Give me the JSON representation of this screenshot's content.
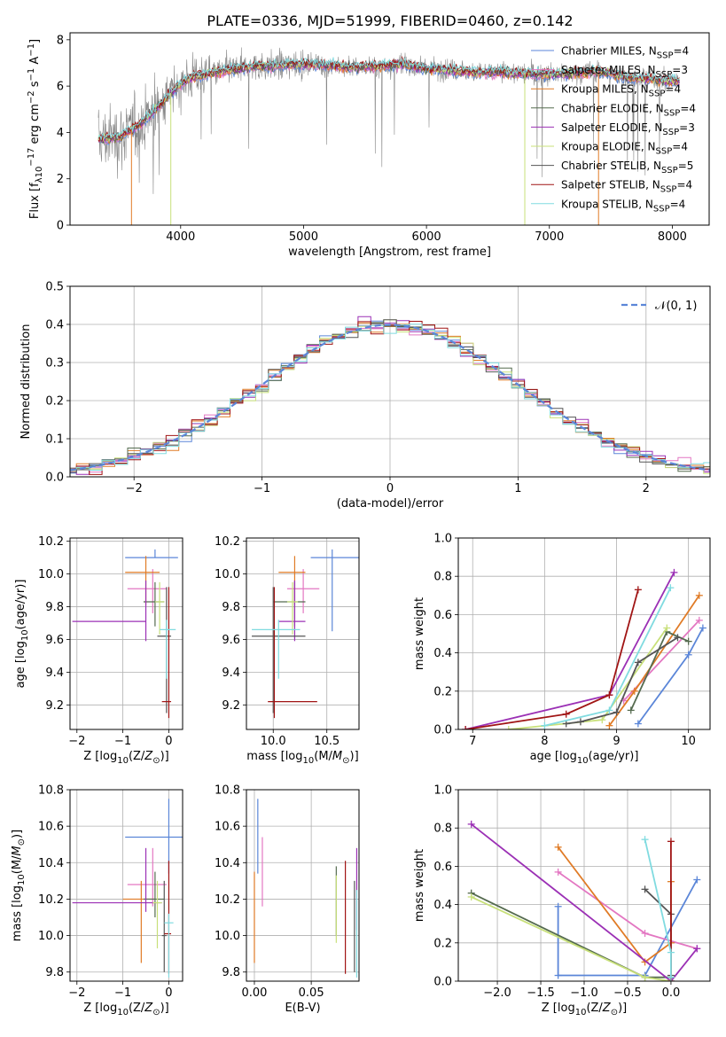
{
  "figure": {
    "title": "PLATE=0336, MJD=51999, FIBERID=0460, z=0.142"
  },
  "palette": {
    "chabrier_miles": "#5b86d8",
    "salpeter_miles": "#e377c2",
    "kroupa_miles": "#e07b26",
    "chabrier_elodie": "#556b4f",
    "salpeter_elodie": "#9b30b5",
    "kroupa_elodie": "#c8e07a",
    "chabrier_stelib": "#555555",
    "salpeter_stelib": "#a01414",
    "kroupa_stelib": "#80dbe0",
    "data": "#888888",
    "normal": "#5b86d8"
  },
  "chart_data": [
    {
      "id": "spectrum",
      "type": "line",
      "xlabel": "wavelength [Angstrom, rest frame]",
      "ylabel": "Flux [f_λ10^-17 erg cm^-2 s^-1 A^-1]",
      "xlim": [
        3100,
        8300
      ],
      "ylim": [
        0,
        8.3
      ],
      "xticks": [
        4000,
        5000,
        6000,
        7000,
        8000
      ],
      "yticks": [
        0,
        2,
        4,
        6,
        8
      ],
      "legend_position": "top-right",
      "legend": [
        {
          "label": "Chabrier MILES, N_SSP=4",
          "color_key": "chabrier_miles"
        },
        {
          "label": "Salpeter MILES, N_SSP=3",
          "color_key": "salpeter_miles"
        },
        {
          "label": "Kroupa MILES, N_SSP=4",
          "color_key": "kroupa_miles"
        },
        {
          "label": "Chabrier ELODIE, N_SSP=4",
          "color_key": "chabrier_elodie"
        },
        {
          "label": "Salpeter ELODIE, N_SSP=3",
          "color_key": "salpeter_elodie"
        },
        {
          "label": "Kroupa ELODIE, N_SSP=4",
          "color_key": "kroupa_elodie"
        },
        {
          "label": "Chabrier STELIB, N_SSP=5",
          "color_key": "chabrier_stelib"
        },
        {
          "label": "Salpeter STELIB, N_SSP=4",
          "color_key": "salpeter_stelib"
        },
        {
          "label": "Kroupa STELIB, N_SSP=4",
          "color_key": "kroupa_stelib"
        }
      ],
      "data_range": [
        3330,
        8060
      ],
      "model_continuum": {
        "x": [
          3330,
          3500,
          3600,
          3700,
          3800,
          3900,
          4000,
          4100,
          4200,
          4400,
          4600,
          4800,
          5000,
          5200,
          5400,
          5600,
          5800,
          6000,
          6200,
          6400,
          6600,
          6800,
          7000,
          7200,
          7400,
          7600,
          7800,
          8050
        ],
        "y": [
          3.7,
          3.8,
          4.1,
          4.5,
          5.0,
          5.6,
          6.1,
          6.4,
          6.5,
          6.7,
          6.85,
          6.9,
          6.95,
          6.9,
          6.8,
          6.85,
          6.95,
          6.75,
          6.7,
          6.6,
          6.6,
          6.55,
          6.5,
          6.55,
          6.65,
          6.4,
          6.3,
          6.2
        ]
      }
    },
    {
      "id": "residuals",
      "type": "histogram",
      "xlabel": "(data-model)/error",
      "ylabel": "Normed distribution",
      "xlim": [
        -2.5,
        2.5
      ],
      "ylim": [
        0,
        0.5
      ],
      "xticks": [
        -2,
        -1,
        0,
        1,
        2
      ],
      "yticks": [
        0.0,
        0.1,
        0.2,
        0.3,
        0.4,
        0.5
      ],
      "grid": true,
      "legend_position": "top-right",
      "legend": [
        {
          "label": "𝒩(0, 1)",
          "color_key": "normal"
        }
      ],
      "bin_width": 0.1
    },
    {
      "id": "age_vs_z",
      "type": "errorbar",
      "xlabel": "Z [log10(Z/Z⊙)]",
      "ylabel": "age [log10(age/yr)]",
      "xlim": [
        -2.15,
        0.3
      ],
      "ylim": [
        9.05,
        10.22
      ],
      "xticks": [
        -2,
        -1,
        0
      ],
      "yticks": [
        9.2,
        9.4,
        9.6,
        9.8,
        10.0,
        10.2
      ],
      "grid": true,
      "points": [
        {
          "model": "chabrier_miles",
          "x": -0.3,
          "xerr": [
            0.65,
            0.5
          ],
          "y": 10.1,
          "yerr": [
            0.0,
            0.05
          ]
        },
        {
          "model": "salpeter_miles",
          "x": -0.35,
          "xerr": [
            0.55,
            0.3
          ],
          "y": 9.91,
          "yerr": [
            0.15,
            0.12
          ]
        },
        {
          "model": "kroupa_miles",
          "x": -0.5,
          "xerr": [
            0.45,
            0.3
          ],
          "y": 10.01,
          "yerr": [
            0.2,
            0.1
          ]
        },
        {
          "model": "chabrier_elodie",
          "x": -0.3,
          "xerr": [
            0.25,
            0.2
          ],
          "y": 9.83,
          "yerr": [
            0.15,
            0.12
          ]
        },
        {
          "model": "salpeter_elodie",
          "x": -0.5,
          "xerr": [
            1.6,
            0.0
          ],
          "y": 9.71,
          "yerr": [
            0.12,
            0.25
          ]
        },
        {
          "model": "kroupa_elodie",
          "x": -0.2,
          "xerr": [
            0.1,
            0.1
          ],
          "y": 9.83,
          "yerr": [
            0.2,
            0.12
          ]
        },
        {
          "model": "chabrier_stelib",
          "x": -0.05,
          "xerr": [
            0.2,
            0.1
          ],
          "y": 9.62,
          "yerr": [
            0.47,
            0.3
          ]
        },
        {
          "model": "salpeter_stelib",
          "x": 0.0,
          "xerr": [
            0.15,
            0.05
          ],
          "y": 9.22,
          "yerr": [
            0.1,
            0.7
          ]
        },
        {
          "model": "kroupa_stelib",
          "x": -0.05,
          "xerr": [
            0.15,
            0.2
          ],
          "y": 9.66,
          "yerr": [
            0.3,
            0.06
          ]
        }
      ]
    },
    {
      "id": "age_vs_mass",
      "type": "errorbar",
      "xlabel": "mass [log10(M/M⊙)]",
      "ylabel": "",
      "xlim": [
        9.75,
        10.8
      ],
      "ylim": [
        9.05,
        10.22
      ],
      "xticks": [
        10.0,
        10.5
      ],
      "yticks": [
        9.2,
        9.4,
        9.6,
        9.8,
        10.0,
        10.2
      ],
      "grid": true,
      "points": [
        {
          "model": "chabrier_miles",
          "x": 10.55,
          "xerr": [
            0.2,
            0.25
          ],
          "y": 10.1,
          "yerr": [
            0.45,
            0.05
          ]
        },
        {
          "model": "salpeter_miles",
          "x": 10.28,
          "xerr": [
            0.15,
            0.15
          ],
          "y": 9.91,
          "yerr": [
            0.15,
            0.12
          ]
        },
        {
          "model": "kroupa_miles",
          "x": 10.2,
          "xerr": [
            0.15,
            0.1
          ],
          "y": 10.01,
          "yerr": [
            0.2,
            0.1
          ]
        },
        {
          "model": "chabrier_elodie",
          "x": 10.2,
          "xerr": [
            0.2,
            0.1
          ],
          "y": 9.83,
          "yerr": [
            0.15,
            0.12
          ]
        },
        {
          "model": "salpeter_elodie",
          "x": 10.2,
          "xerr": [
            0.15,
            0.1
          ],
          "y": 9.71,
          "yerr": [
            0.12,
            0.25
          ]
        },
        {
          "model": "kroupa_elodie",
          "x": 10.18,
          "xerr": [
            0.05,
            0.05
          ],
          "y": 9.83,
          "yerr": [
            0.2,
            0.12
          ]
        },
        {
          "model": "chabrier_stelib",
          "x": 10.0,
          "xerr": [
            0.2,
            0.3
          ],
          "y": 9.62,
          "yerr": [
            0.47,
            0.3
          ]
        },
        {
          "model": "salpeter_stelib",
          "x": 10.01,
          "xerr": [
            0.06,
            0.4
          ],
          "y": 9.22,
          "yerr": [
            0.1,
            0.7
          ]
        },
        {
          "model": "kroupa_stelib",
          "x": 10.05,
          "xerr": [
            0.25,
            0.2
          ],
          "y": 9.66,
          "yerr": [
            0.3,
            0.06
          ]
        }
      ]
    },
    {
      "id": "weight_vs_age",
      "type": "line",
      "xlabel": "age [log10(age/yr)]",
      "ylabel": "mass weight",
      "xlim": [
        6.8,
        10.3
      ],
      "ylim": [
        0,
        1.0
      ],
      "xticks": [
        7,
        8,
        9,
        10
      ],
      "yticks": [
        0.0,
        0.2,
        0.4,
        0.6,
        0.8,
        1.0
      ],
      "grid": true,
      "series": [
        {
          "model": "chabrier_miles",
          "x": [
            9.3,
            10.0,
            10.2
          ],
          "y": [
            0.03,
            0.39,
            0.53
          ]
        },
        {
          "model": "salpeter_miles",
          "x": [
            9.1,
            10.15
          ],
          "y": [
            0.15,
            0.57
          ]
        },
        {
          "model": "kroupa_miles",
          "x": [
            8.9,
            9.25,
            10.15
          ],
          "y": [
            0.02,
            0.2,
            0.7
          ]
        },
        {
          "model": "chabrier_elodie",
          "x": [
            9.2,
            9.7,
            10.0
          ],
          "y": [
            0.1,
            0.51,
            0.46
          ]
        },
        {
          "model": "salpeter_elodie",
          "x": [
            6.9,
            8.9,
            9.8
          ],
          "y": [
            0.0,
            0.18,
            0.82
          ]
        },
        {
          "model": "kroupa_elodie",
          "x": [
            7.5,
            8.8,
            9.7
          ],
          "y": [
            0.0,
            0.05,
            0.53
          ]
        },
        {
          "model": "chabrier_stelib",
          "x": [
            8.3,
            8.5,
            9.0,
            9.3,
            9.85
          ],
          "y": [
            0.03,
            0.04,
            0.09,
            0.35,
            0.48
          ]
        },
        {
          "model": "salpeter_stelib",
          "x": [
            6.9,
            8.3,
            8.9,
            9.3
          ],
          "y": [
            0.0,
            0.08,
            0.18,
            0.73
          ]
        },
        {
          "model": "kroupa_stelib",
          "x": [
            8.0,
            8.9,
            9.75
          ],
          "y": [
            0.02,
            0.1,
            0.74
          ]
        }
      ]
    },
    {
      "id": "mass_vs_z",
      "type": "errorbar",
      "xlabel": "Z [log10(Z/Z⊙)]",
      "ylabel": "mass [log10(M/M⊙)]",
      "xlim": [
        -2.15,
        0.3
      ],
      "ylim": [
        9.75,
        10.8
      ],
      "xticks": [
        -2,
        -1,
        0
      ],
      "yticks": [
        9.8,
        10.0,
        10.2,
        10.4,
        10.6,
        10.8
      ],
      "grid": true,
      "points": [
        {
          "model": "chabrier_miles",
          "x": 0.0,
          "xerr": [
            0.95,
            0.3
          ],
          "y": 10.54,
          "yerr": [
            0.2,
            0.21
          ]
        },
        {
          "model": "salpeter_miles",
          "x": -0.35,
          "xerr": [
            0.55,
            0.3
          ],
          "y": 10.28,
          "yerr": [
            0.12,
            0.2
          ]
        },
        {
          "model": "kroupa_miles",
          "x": -0.6,
          "xerr": [
            0.4,
            0.3
          ],
          "y": 10.2,
          "yerr": [
            0.35,
            0.1
          ]
        },
        {
          "model": "chabrier_elodie",
          "x": -0.3,
          "xerr": [
            0.25,
            0.2
          ],
          "y": 10.2,
          "yerr": [
            0.1,
            0.15
          ]
        },
        {
          "model": "salpeter_elodie",
          "x": -0.5,
          "xerr": [
            1.6,
            0.35
          ],
          "y": 10.18,
          "yerr": [
            0.05,
            0.3
          ]
        },
        {
          "model": "kroupa_elodie",
          "x": -0.25,
          "xerr": [
            0.1,
            0.1
          ],
          "y": 10.18,
          "yerr": [
            0.25,
            0.12
          ]
        },
        {
          "model": "chabrier_stelib",
          "x": -0.1,
          "xerr": [
            0.05,
            0.05
          ],
          "y": 10.0,
          "yerr": [
            0.2,
            0.3
          ]
        },
        {
          "model": "salpeter_stelib",
          "x": 0.0,
          "xerr": [
            0.1,
            0.05
          ],
          "y": 10.01,
          "yerr": [
            0.22,
            0.4
          ]
        },
        {
          "model": "kroupa_stelib",
          "x": 0.0,
          "xerr": [
            0.1,
            0.1
          ],
          "y": 10.07,
          "yerr": [
            0.3,
            0.05
          ]
        }
      ]
    },
    {
      "id": "mass_vs_ebv",
      "type": "errorbar",
      "xlabel": "E(B-V)",
      "ylabel": "",
      "xlim": [
        -0.007,
        0.092
      ],
      "ylim": [
        9.75,
        10.8
      ],
      "xticks": [
        0.0,
        0.05
      ],
      "yticks": [
        9.8,
        10.0,
        10.2,
        10.4,
        10.6,
        10.8
      ],
      "grid": true,
      "points": [
        {
          "model": "chabrier_miles",
          "x": 0.003,
          "xerr": [
            0,
            0
          ],
          "y": 10.54,
          "yerr": [
            0.2,
            0.21
          ]
        },
        {
          "model": "salpeter_miles",
          "x": 0.007,
          "xerr": [
            0,
            0
          ],
          "y": 10.28,
          "yerr": [
            0.12,
            0.26
          ]
        },
        {
          "model": "kroupa_miles",
          "x": 0.0,
          "xerr": [
            0,
            0
          ],
          "y": 10.2,
          "yerr": [
            0.35,
            0.15
          ]
        },
        {
          "model": "chabrier_elodie",
          "x": 0.072,
          "xerr": [
            0,
            0
          ],
          "y": 10.2,
          "yerr": [
            0.2,
            0.18
          ]
        },
        {
          "model": "salpeter_elodie",
          "x": 0.09,
          "xerr": [
            0,
            0
          ],
          "y": 10.18,
          "yerr": [
            0.15,
            0.3
          ]
        },
        {
          "model": "kroupa_elodie",
          "x": 0.072,
          "xerr": [
            0,
            0
          ],
          "y": 10.18,
          "yerr": [
            0.22,
            0.15
          ]
        },
        {
          "model": "chabrier_stelib",
          "x": 0.088,
          "xerr": [
            0,
            0
          ],
          "y": 10.0,
          "yerr": [
            0.2,
            0.3
          ]
        },
        {
          "model": "salpeter_stelib",
          "x": 0.08,
          "xerr": [
            0,
            0
          ],
          "y": 10.01,
          "yerr": [
            0.22,
            0.4
          ]
        },
        {
          "model": "kroupa_stelib",
          "x": 0.09,
          "xerr": [
            0,
            0
          ],
          "y": 10.07,
          "yerr": [
            0.3,
            0.18
          ]
        }
      ]
    },
    {
      "id": "weight_vs_z",
      "type": "line",
      "xlabel": "Z [log10(Z/Z⊙)]",
      "ylabel": "mass weight",
      "xlim": [
        -2.45,
        0.45
      ],
      "ylim": [
        0,
        1.0
      ],
      "xticks": [
        -2.0,
        -1.5,
        -1.0,
        -0.5,
        0.0
      ],
      "yticks": [
        0.0,
        0.2,
        0.4,
        0.6,
        0.8,
        1.0
      ],
      "grid": true,
      "series": [
        {
          "model": "chabrier_miles",
          "x": [
            -1.3,
            -1.3,
            -0.3,
            0.3
          ],
          "y": [
            0.39,
            0.03,
            0.03,
            0.53
          ]
        },
        {
          "model": "salpeter_miles",
          "x": [
            -1.3,
            -0.3,
            0.3
          ],
          "y": [
            0.57,
            0.25,
            0.17
          ]
        },
        {
          "model": "kroupa_miles",
          "x": [
            -1.3,
            -0.3,
            0.0,
            0.0
          ],
          "y": [
            0.7,
            0.1,
            0.2,
            0.52
          ]
        },
        {
          "model": "chabrier_elodie",
          "x": [
            -2.3,
            -0.3,
            0.0
          ],
          "y": [
            0.46,
            0.02,
            0.02
          ]
        },
        {
          "model": "salpeter_elodie",
          "x": [
            -2.3,
            0.0,
            0.3
          ],
          "y": [
            0.82,
            0.0,
            0.17
          ]
        },
        {
          "model": "kroupa_elodie",
          "x": [
            -2.3,
            -0.3,
            0.0
          ],
          "y": [
            0.44,
            0.02,
            0.0
          ]
        },
        {
          "model": "chabrier_stelib",
          "x": [
            -0.3,
            0.0,
            0.0
          ],
          "y": [
            0.48,
            0.35,
            0.03
          ]
        },
        {
          "model": "salpeter_stelib",
          "x": [
            0.0,
            0.0
          ],
          "y": [
            0.73,
            0.0
          ]
        },
        {
          "model": "kroupa_stelib",
          "x": [
            -0.3,
            0.0,
            0.0
          ],
          "y": [
            0.74,
            0.15,
            0.02
          ]
        }
      ]
    }
  ]
}
